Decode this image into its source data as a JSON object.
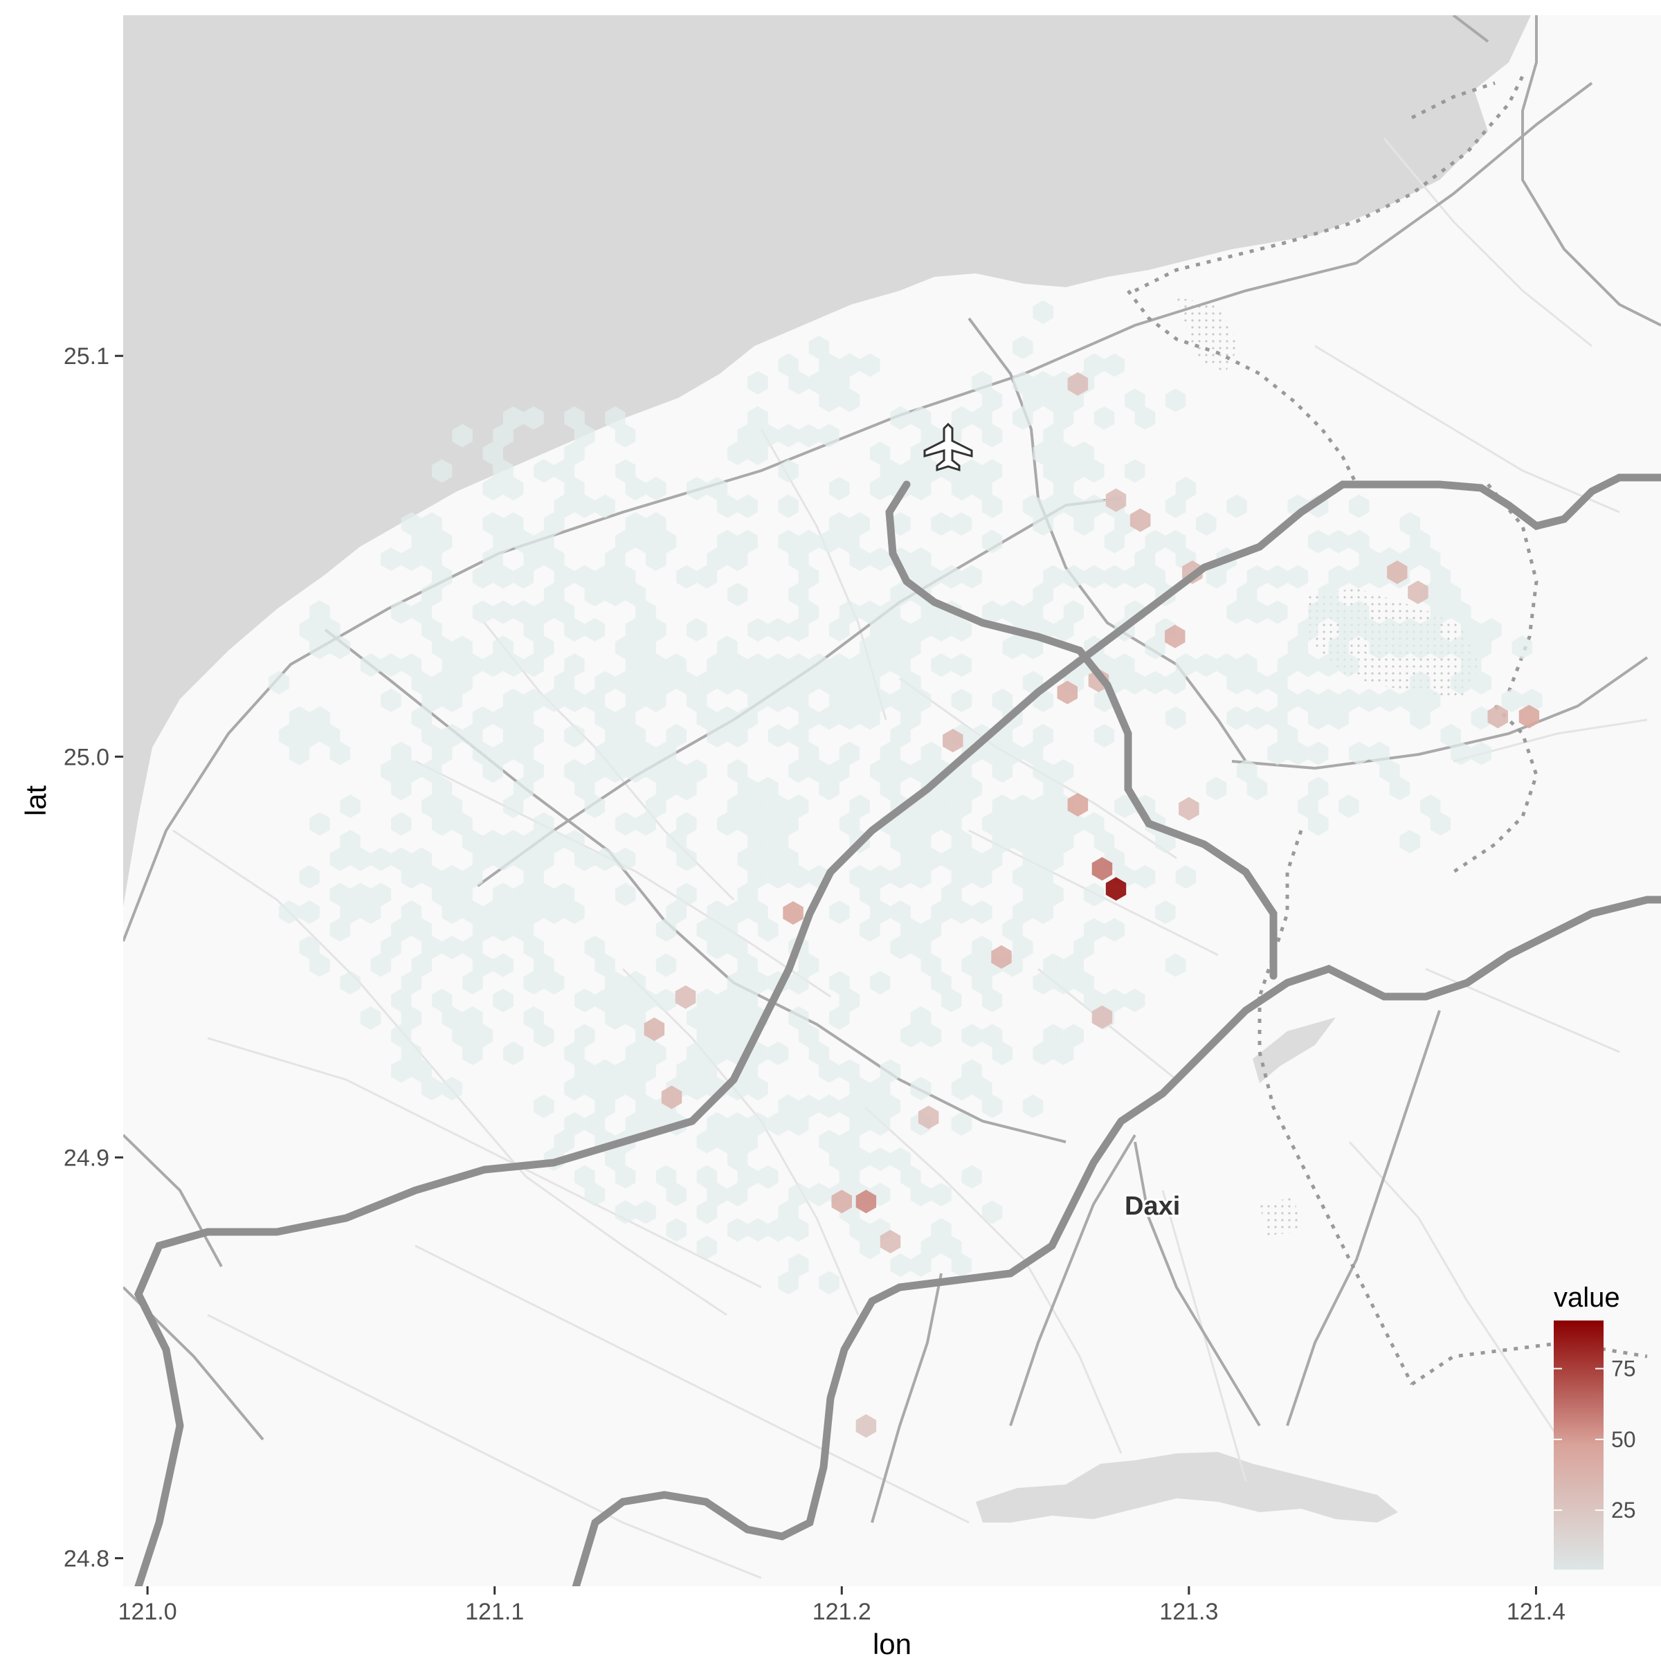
{
  "axes": {
    "x_title": "lon",
    "y_title": "lat",
    "x_ticks": [
      {
        "value": 121.0,
        "label": "121.0"
      },
      {
        "value": 121.1,
        "label": "121.1"
      },
      {
        "value": 121.2,
        "label": "121.2"
      },
      {
        "value": 121.3,
        "label": "121.3"
      },
      {
        "value": 121.4,
        "label": "121.4"
      }
    ],
    "y_ticks": [
      {
        "value": 25.1,
        "label": "25.1"
      },
      {
        "value": 25.0,
        "label": "25.0"
      },
      {
        "value": 24.9,
        "label": "24.9"
      },
      {
        "value": 24.8,
        "label": "24.8"
      }
    ],
    "x_range": [
      120.993,
      121.436
    ],
    "y_range": [
      24.793,
      25.185
    ]
  },
  "map": {
    "place_label": "Daxi",
    "airport_icon": "airplane-icon",
    "sea_color": "#d9d9d9",
    "land_color": "#f9f9f9"
  },
  "legend": {
    "title": "value",
    "ticks": [
      {
        "value": 25,
        "label": "25"
      },
      {
        "value": 50,
        "label": "50"
      },
      {
        "value": 75,
        "label": "75"
      }
    ],
    "min": 4,
    "max": 92,
    "low_color": "#dde6e6",
    "high_color": "#8b0000"
  },
  "chart_data": {
    "type": "hexbin",
    "title": "",
    "xlabel": "lon",
    "ylabel": "lat",
    "xlim": [
      120.993,
      121.436
    ],
    "ylim": [
      24.793,
      25.185
    ],
    "points": [
      {
        "lon": 121.279,
        "lat": 24.967,
        "value": 90
      },
      {
        "lon": 121.275,
        "lat": 24.972,
        "value": 60
      },
      {
        "lon": 121.207,
        "lat": 24.889,
        "value": 55
      },
      {
        "lon": 121.2,
        "lat": 24.889,
        "value": 40
      },
      {
        "lon": 121.186,
        "lat": 24.961,
        "value": 45
      },
      {
        "lon": 121.268,
        "lat": 24.988,
        "value": 45
      },
      {
        "lon": 121.265,
        "lat": 25.016,
        "value": 40
      },
      {
        "lon": 121.274,
        "lat": 25.019,
        "value": 35
      },
      {
        "lon": 121.246,
        "lat": 24.95,
        "value": 40
      },
      {
        "lon": 121.232,
        "lat": 25.004,
        "value": 35
      },
      {
        "lon": 121.36,
        "lat": 25.046,
        "value": 35
      },
      {
        "lon": 121.366,
        "lat": 25.041,
        "value": 30
      },
      {
        "lon": 121.398,
        "lat": 25.01,
        "value": 45
      },
      {
        "lon": 121.389,
        "lat": 25.01,
        "value": 35
      },
      {
        "lon": 121.296,
        "lat": 25.03,
        "value": 40
      },
      {
        "lon": 121.301,
        "lat": 25.046,
        "value": 35
      },
      {
        "lon": 121.279,
        "lat": 25.064,
        "value": 30
      },
      {
        "lon": 121.286,
        "lat": 25.059,
        "value": 35
      },
      {
        "lon": 121.268,
        "lat": 25.093,
        "value": 30
      },
      {
        "lon": 121.151,
        "lat": 24.915,
        "value": 35
      },
      {
        "lon": 121.146,
        "lat": 24.932,
        "value": 35
      },
      {
        "lon": 121.214,
        "lat": 24.879,
        "value": 30
      },
      {
        "lon": 121.225,
        "lat": 24.91,
        "value": 30
      },
      {
        "lon": 121.275,
        "lat": 24.935,
        "value": 30
      },
      {
        "lon": 121.3,
        "lat": 24.987,
        "value": 30
      },
      {
        "lon": 121.207,
        "lat": 24.833,
        "value": 25
      },
      {
        "lon": 121.155,
        "lat": 24.94,
        "value": 30
      }
    ]
  }
}
